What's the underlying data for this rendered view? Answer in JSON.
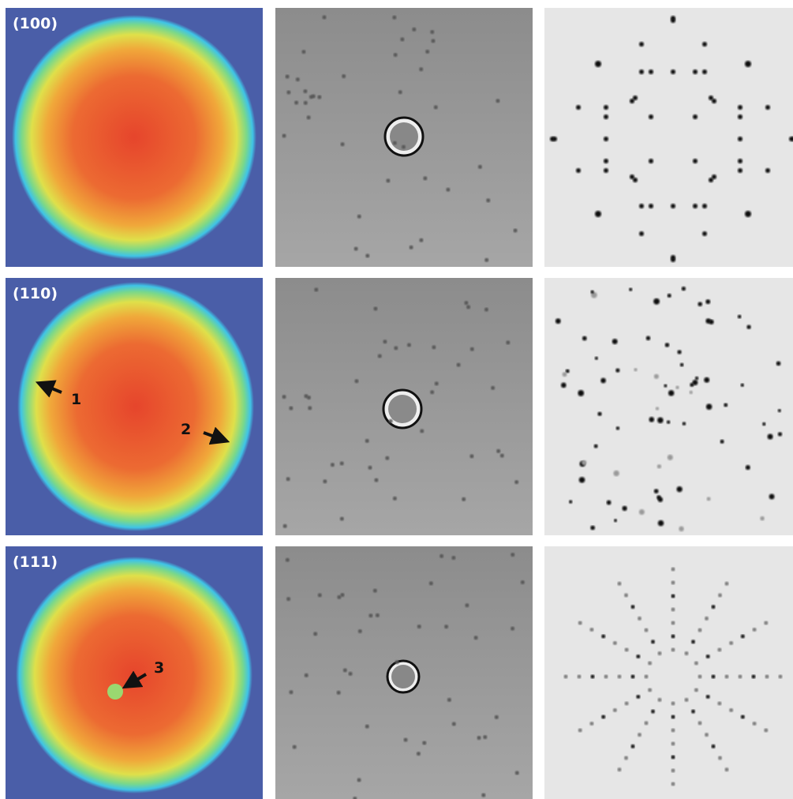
{
  "panels": [
    {
      "label": "(100)"
    },
    {
      "label": "(110)",
      "annotations": [
        "1",
        "2"
      ]
    },
    {
      "label": "(111)",
      "annotations": [
        "3"
      ]
    }
  ]
}
